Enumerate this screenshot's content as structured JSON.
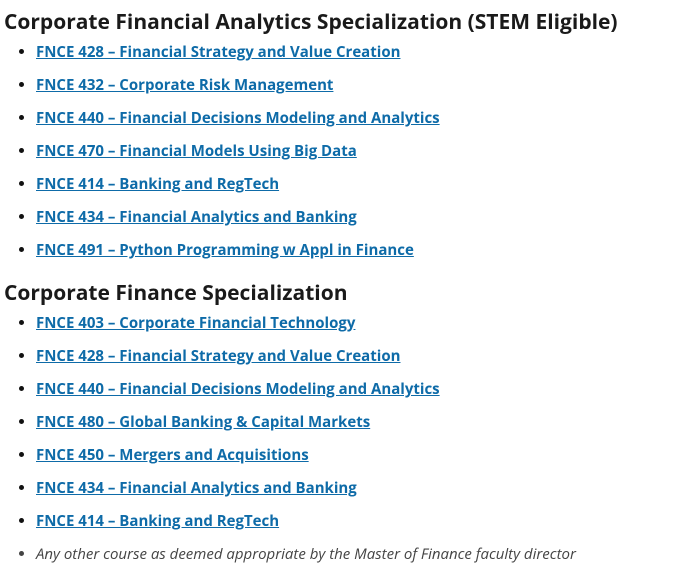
{
  "sections": [
    {
      "title": "Corporate Financial Analytics Specialization (STEM Eligible)",
      "items": [
        {
          "type": "link",
          "text": "FNCE 428 – Financial Strategy and Value Creation"
        },
        {
          "type": "link",
          "text": "FNCE 432 – Corporate Risk Management"
        },
        {
          "type": "link",
          "text": "FNCE 440 – Financial Decisions Modeling and Analytics"
        },
        {
          "type": "link",
          "text": "FNCE 470 – Financial Models Using Big Data"
        },
        {
          "type": "link",
          "text": "FNCE 414 – Banking and RegTech"
        },
        {
          "type": "link",
          "text": "FNCE 434 – Financial Analytics and Banking"
        },
        {
          "type": "link",
          "text": "FNCE 491 – Python Programming w Appl in Finance"
        }
      ]
    },
    {
      "title": "Corporate Finance Specialization",
      "items": [
        {
          "type": "link",
          "text": "FNCE 403 – Corporate Financial Technology"
        },
        {
          "type": "link",
          "text": "FNCE 428 – Financial Strategy and Value Creation"
        },
        {
          "type": "link",
          "text": "FNCE 440 – Financial Decisions Modeling and Analytics"
        },
        {
          "type": "link",
          "text": "FNCE 480 – Global Banking & Capital Markets"
        },
        {
          "type": "link",
          "text": "FNCE 450 – Mergers and Acquisitions"
        },
        {
          "type": "link",
          "text": "FNCE 434 – Financial Analytics and Banking"
        },
        {
          "type": "link",
          "text": "FNCE 414 – Banking and RegTech"
        },
        {
          "type": "note",
          "text": "Any other course as deemed appropriate by the Master of Finance faculty director"
        }
      ]
    }
  ],
  "colors": {
    "link": "#0e6ba8",
    "heading": "#1a1a1a",
    "note": "#444444",
    "background": "#ffffff"
  }
}
